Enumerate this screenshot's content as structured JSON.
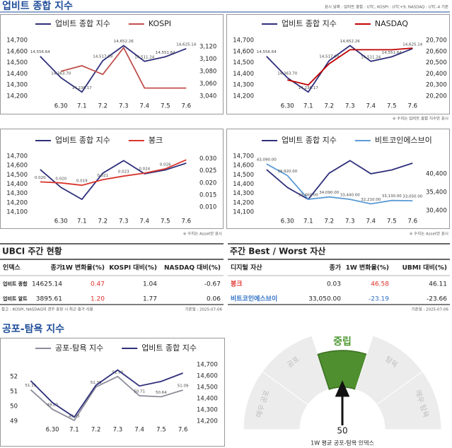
{
  "header": {
    "title": "업비트 종합 지수",
    "note": "표시 날짜 : 업비트 종합 : UTC, KOSPI : UTC+9, NASDAQ : UTC-4 기준"
  },
  "chart_data": [
    {
      "type": "line",
      "categories": [
        null,
        "6.30",
        "7.1",
        "7.2",
        "7.3",
        "7.4",
        "7.5",
        "7.6"
      ],
      "series": [
        {
          "name": "업비트 종합 지수",
          "color": "#2e2f7a",
          "values": [
            14556.64,
            14363.7,
            14236.17,
            14517.09,
            14652.26,
            14511.24,
            14551.64,
            14625.14
          ],
          "value_labels": [
            "14,556.64",
            "14,363.70",
            "14,236.17",
            "14,517.09",
            "14,652.26",
            "14,511.24",
            "14,551.64",
            "14,625.14"
          ]
        },
        {
          "name": "KOSPI",
          "color": "#c0504d",
          "axis": "y2",
          "values": [
            null,
            3080,
            3089,
            3075,
            3118,
            3053,
            3053,
            3053
          ]
        }
      ],
      "ylim": [
        14200,
        14700
      ],
      "yticks": [
        {
          "value": 14200,
          "label": "14,200"
        },
        {
          "value": 14300,
          "label": "14,300"
        },
        {
          "value": 14400,
          "label": "14,400"
        },
        {
          "value": 14500,
          "label": "14,500"
        },
        {
          "value": 14600,
          "label": "14,600"
        },
        {
          "value": 14700,
          "label": "14,700"
        }
      ],
      "y2lim": [
        3040,
        3130
      ],
      "y2ticks": [
        {
          "value": 3040,
          "label": "3,040"
        },
        {
          "value": 3060,
          "label": "3,060"
        },
        {
          "value": 3080,
          "label": "3,080"
        },
        {
          "value": 3100,
          "label": "3,100"
        },
        {
          "value": 3120,
          "label": "3,120"
        }
      ]
    },
    {
      "type": "line",
      "categories": [
        null,
        "6.30",
        "7.1",
        "7.2",
        "7.3",
        "7.4",
        "7.5",
        "7.6"
      ],
      "series": [
        {
          "name": "업비트 종합 지수",
          "color": "#2e2f7a",
          "values": [
            14556.64,
            14363.7,
            14236.17,
            14517.09,
            14652.26,
            14511.24,
            14551.64,
            14625.14
          ],
          "value_labels": [
            "14,556.64",
            "14,363.70",
            "14,236.17",
            "14,517.09",
            "14,652.26",
            "14,511.24",
            "14,551.64",
            "14,625.14"
          ]
        },
        {
          "name": "NASDAQ",
          "color": "#c00000",
          "axis": "y2",
          "values": [
            null,
            20345,
            20300,
            20490,
            20615,
            20615,
            20615,
            20630
          ]
        }
      ],
      "ylim": [
        14200,
        14700
      ],
      "yticks": [
        {
          "value": 14200,
          "label": "14,200"
        },
        {
          "value": 14300,
          "label": "14,300"
        },
        {
          "value": 14400,
          "label": "14,400"
        },
        {
          "value": 14500,
          "label": "14,500"
        },
        {
          "value": 14600,
          "label": "14,600"
        },
        {
          "value": 14700,
          "label": "14,700"
        }
      ],
      "y2lim": [
        20200,
        20700
      ],
      "y2ticks": [
        {
          "value": 20200,
          "label": "20,200"
        },
        {
          "value": 20300,
          "label": "20,300"
        },
        {
          "value": 20400,
          "label": "20,400"
        },
        {
          "value": 20500,
          "label": "20,500"
        },
        {
          "value": 20600,
          "label": "20,600"
        },
        {
          "value": 20700,
          "label": "20,700"
        }
      ],
      "note": "※ 수치는 업비트 종합 지수만 표시"
    },
    {
      "type": "line",
      "categories": [
        null,
        "6.30",
        "7.1",
        "7.2",
        "7.3",
        "7.4",
        "7.5",
        "7.6"
      ],
      "series": [
        {
          "name": "업비트 종합 지수",
          "color": "#2e2f7a",
          "values": [
            14556.64,
            14363.7,
            14236.17,
            14517.09,
            14652.26,
            14511.24,
            14551.64,
            14625.14
          ]
        },
        {
          "name": "봉크",
          "color": "#d9342b",
          "axis": "y2",
          "values": [
            0.0204,
            0.02,
            0.019,
            0.0213,
            0.0228,
            0.024,
            0.0258,
            0.0295
          ],
          "value_labels": [
            "0.020",
            "0.020",
            "0.019",
            "0.021",
            "0.023",
            "0.024",
            "0.026",
            null
          ]
        }
      ],
      "ylim": [
        14100,
        14700
      ],
      "yticks": [
        {
          "value": 14100,
          "label": "14,100"
        },
        {
          "value": 14200,
          "label": "14,200"
        },
        {
          "value": 14300,
          "label": "14,300"
        },
        {
          "value": 14400,
          "label": "14,400"
        },
        {
          "value": 14500,
          "label": "14,500"
        },
        {
          "value": 14600,
          "label": "14,600"
        },
        {
          "value": 14700,
          "label": "14,700"
        }
      ],
      "y2lim": [
        0.008,
        0.031
      ],
      "y2ticks": [
        {
          "value": 0.01,
          "label": "0.010"
        },
        {
          "value": 0.015,
          "label": "0.015"
        },
        {
          "value": 0.02,
          "label": "0.020"
        },
        {
          "value": 0.025,
          "label": "0.025"
        },
        {
          "value": 0.03,
          "label": "0.030"
        }
      ],
      "note": "※ 수치는 Asset만 표시"
    },
    {
      "type": "line",
      "categories": [
        null,
        "6.30",
        "7.1",
        "7.2",
        "7.3",
        "7.4",
        "7.5",
        "7.6"
      ],
      "series": [
        {
          "name": "업비트 종합 지수",
          "color": "#2e2f7a",
          "values": [
            14556.64,
            14363.7,
            14236.17,
            14517.09,
            14652.26,
            14511.24,
            14551.64,
            14625.14
          ]
        },
        {
          "name": "비트코인에스브이",
          "color": "#5b9bd5",
          "axis": "y2",
          "values": [
            43090,
            39920,
            33460,
            34090,
            33440,
            32210,
            33130,
            33050
          ],
          "value_labels": [
            "43,090.00",
            "39,920.00",
            "33,460.00",
            "34,090.00",
            "33,440.00",
            "32,210.00",
            "33,130.00",
            "33,050.00"
          ]
        }
      ],
      "ylim": [
        14100,
        14700
      ],
      "yticks": [
        {
          "value": 14100,
          "label": "14,100"
        },
        {
          "value": 14200,
          "label": "14,200"
        },
        {
          "value": 14300,
          "label": "14,300"
        },
        {
          "value": 14400,
          "label": "14,400"
        },
        {
          "value": 14500,
          "label": "14,500"
        },
        {
          "value": 14600,
          "label": "14,600"
        },
        {
          "value": 14700,
          "label": "14,700"
        }
      ],
      "y2lim": [
        30000,
        45200
      ],
      "y2ticks": [
        {
          "value": 30400,
          "label": "30,400"
        },
        {
          "value": 35400,
          "label": "35,400"
        },
        {
          "value": 40400,
          "label": "40,400"
        }
      ],
      "note": "※ 수치는 Asset만 표시"
    },
    {
      "type": "line",
      "title": "공포-탐욕 지수",
      "categories": [
        null,
        "6.30",
        "7.1",
        "7.2",
        "7.3",
        "7.4",
        "7.5",
        "7.6"
      ],
      "series": [
        {
          "name": "공포-탐욕 지수",
          "color": "#8c8c9a",
          "values": [
            51.11,
            49.8,
            49.05,
            51.3,
            52.0,
            50.71,
            50.64,
            51.09
          ],
          "value_labels": [
            "51.11",
            "49.80",
            "49.05",
            "51.30",
            "52.00",
            "50.71",
            "50.64",
            "51.09"
          ]
        },
        {
          "name": "업비트 종합 지수",
          "color": "#2e2f7a",
          "axis": "y2",
          "values": [
            14556.64,
            14363.7,
            14236.17,
            14517.09,
            14652.26,
            14511.24,
            14551.64,
            14625.14
          ]
        }
      ],
      "ylim": [
        49,
        52.8
      ],
      "yticks": [
        49,
        50,
        51,
        52
      ],
      "y2lim": [
        14200,
        14700
      ],
      "y2ticks": [
        {
          "value": 14200,
          "label": "14,200"
        },
        {
          "value": 14300,
          "label": "14,300"
        },
        {
          "value": 14400,
          "label": "14,400"
        },
        {
          "value": 14500,
          "label": "14,500"
        },
        {
          "value": 14600,
          "label": "14,600"
        },
        {
          "value": 14700,
          "label": "14,700"
        }
      ]
    }
  ],
  "tables": [
    {
      "title": "UBCI 주간 현황",
      "columns": [
        "인덱스",
        "종가",
        "1W 변화율(%)",
        "KOSPI 대비(%)",
        "NASDAQ 대비(%)"
      ],
      "rows": [
        [
          "업비트 종합",
          "14625.14",
          "0.47",
          "1.04",
          "-0.67"
        ],
        [
          "업비트 알트",
          "3895.61",
          "1.20",
          "1.77",
          "0.06"
        ]
      ],
      "note": "참고 : KOSPI, NASDAQ의 경우 휴장 시 최근 종가 사용",
      "date": "기준일 : 2025-07-06"
    },
    {
      "title": "주간 Best / Worst 자산",
      "columns": [
        "디지털 자산",
        "종가",
        "1W 변화율(%)",
        "UBMI 대비(%)"
      ],
      "rows": [
        [
          "봉크",
          "0.03",
          "46.58",
          "46.11"
        ],
        [
          "비트코인에스브이",
          "33,050.00",
          "-23.19",
          "-23.66"
        ]
      ],
      "date": "기준일 : 2025-07-06"
    }
  ],
  "gauge": {
    "labels": [
      "매우 공포",
      "공포",
      "중립",
      "탐욕",
      "매우 탐욕"
    ],
    "value": 50,
    "caption": "1W 평균 공포-탐욕 인덱스"
  }
}
